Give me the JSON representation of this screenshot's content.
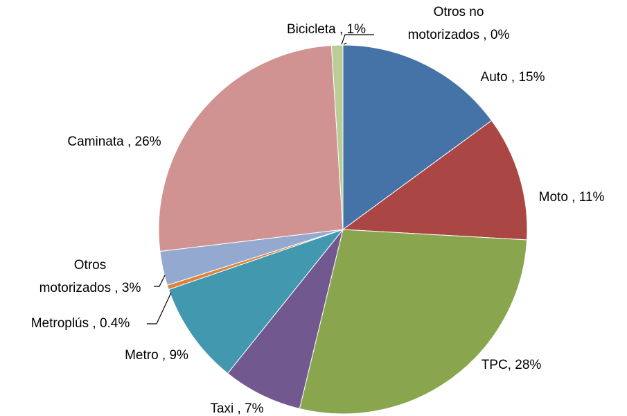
{
  "chart_data": {
    "type": "pie",
    "categories": [
      "Auto , 15%",
      "Moto , 11%",
      "TPC, 28%",
      "Taxi , 7%",
      "Metro , 9%",
      "Metroplús , 0.4%",
      "Otros\nmotorizados , 3%",
      "Caminata , 26%",
      "Bicicleta , 1%",
      "Otros no\nmotorizados , 0%"
    ],
    "values": [
      15,
      11,
      28,
      7,
      9,
      0.4,
      3,
      26,
      1,
      0
    ],
    "colors": [
      "#4572a7",
      "#aa4643",
      "#89a54e",
      "#71588f",
      "#4198af",
      "#db843d",
      "#93a9cf",
      "#d19392",
      "#b9cd96",
      "#a99bbd"
    ]
  }
}
